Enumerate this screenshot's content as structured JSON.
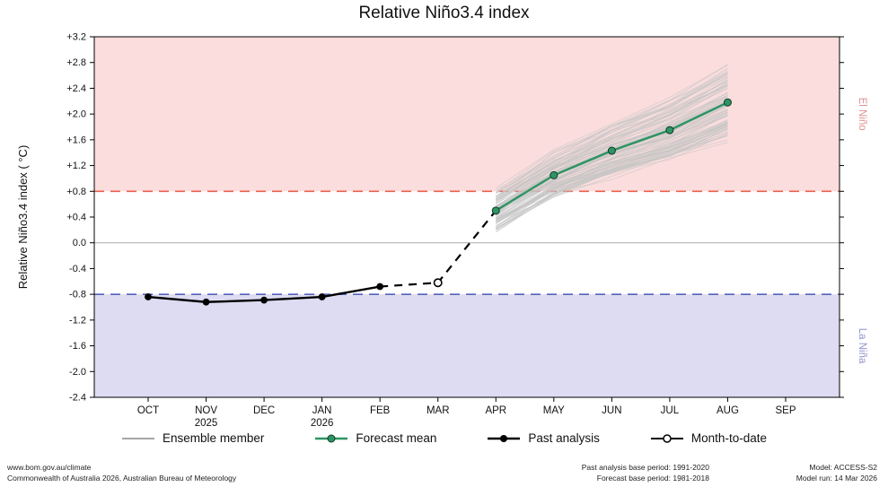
{
  "title": "Relative Niño3.4 index",
  "chart_data": {
    "type": "line",
    "title": "Relative Niño3.4 index",
    "ylabel": "Relative Niño3.4 index ( °C)",
    "x_categories": [
      "OCT",
      "NOV",
      "DEC",
      "JAN",
      "FEB",
      "MAR",
      "APR",
      "MAY",
      "JUN",
      "JUL",
      "AUG",
      "SEP"
    ],
    "x_year_labels": [
      {
        "index": 1,
        "label": "2025"
      },
      {
        "index": 3,
        "label": "2026"
      }
    ],
    "ylim": [
      -2.4,
      3.2
    ],
    "ytick_step": 0.4,
    "regions": [
      {
        "label": "El Niño",
        "from": 0.8,
        "to": 3.2,
        "fill": "#fbdddd",
        "label_color": "#e09090"
      },
      {
        "label": "La Niña",
        "from": -2.4,
        "to": -0.8,
        "fill": "#dddcf2",
        "label_color": "#9092cc"
      }
    ],
    "threshold_lines": [
      {
        "value": 0.8,
        "color": "#e8604e"
      },
      {
        "value": -0.8,
        "color": "#5562be"
      }
    ],
    "series": [
      {
        "name": "Past analysis",
        "type": "past",
        "x": [
          0,
          1,
          2,
          3,
          4
        ],
        "values": [
          -0.84,
          -0.92,
          -0.89,
          -0.84,
          -0.68
        ]
      },
      {
        "name": "Month-to-date",
        "type": "mtd",
        "x": [
          5
        ],
        "values": [
          -0.62
        ]
      },
      {
        "name": "Forecast mean",
        "type": "forecast",
        "x": [
          6,
          7,
          8,
          9,
          10
        ],
        "values": [
          0.5,
          1.05,
          1.43,
          1.75,
          2.18
        ]
      }
    ],
    "ensemble": {
      "name": "Ensemble member",
      "count": 90,
      "x": [
        6,
        7,
        8,
        9,
        10
      ],
      "spread": [
        0.28,
        0.33,
        0.38,
        0.45,
        0.55
      ]
    },
    "colors": {
      "zero_line": "#aaaaaa",
      "forecast": "#2e9464",
      "forecast_edge": "#123a26",
      "past": "#000000",
      "ensemble": "#c4c4c4",
      "ensemble_legend": "#9a9a9a",
      "axis": "#000000"
    }
  },
  "legend": {
    "items": [
      {
        "label": "Ensemble member"
      },
      {
        "label": "Forecast mean"
      },
      {
        "label": "Past analysis"
      },
      {
        "label": "Month-to-date"
      }
    ]
  },
  "footer": {
    "left": [
      "www.bom.gov.au/climate",
      "Commonwealth of Australia 2026, Australian Bureau of Meteorology"
    ],
    "mid": [
      "Past analysis base period: 1991-2020",
      "Forecast base period: 1981-2018"
    ],
    "right": [
      "Model: ACCESS-S2",
      "Model run: 14 Mar 2026"
    ]
  }
}
